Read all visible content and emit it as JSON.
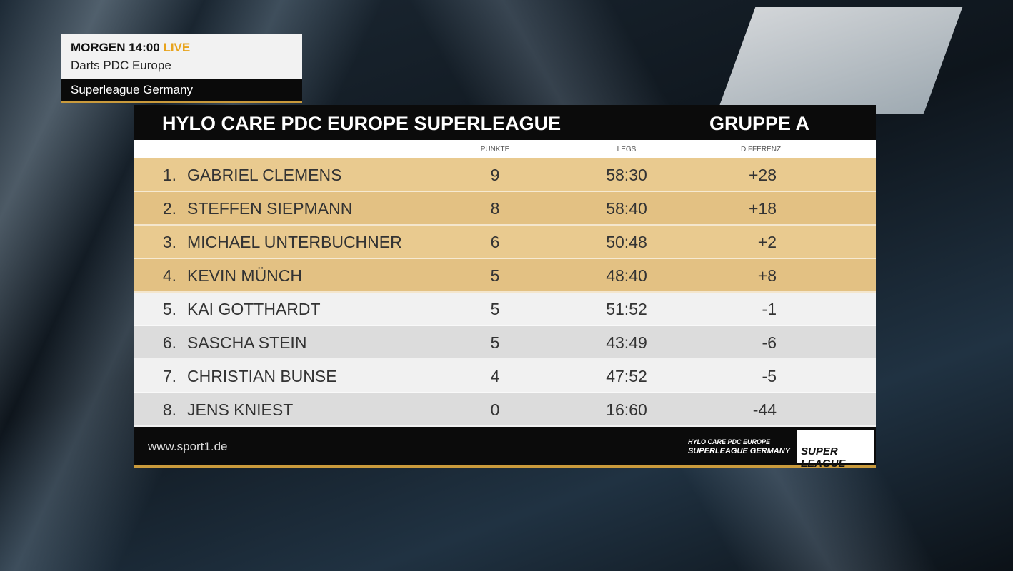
{
  "promo": {
    "time": "MORGEN 14:00",
    "live": "LIVE",
    "program": "Darts PDC Europe",
    "subtitle": "Superleague Germany"
  },
  "table": {
    "title": "HYLO CARE PDC EUROPE SUPERLEAGUE",
    "group": "GRUPPE A",
    "columns": [
      "PUNKTE",
      "LEGS",
      "DIFFERENZ"
    ],
    "rows": [
      [
        "1.",
        "GABRIEL CLEMENS",
        9,
        "58:30",
        "+28"
      ],
      [
        "2.",
        "STEFFEN SIEPMANN",
        8,
        "58:40",
        "+18"
      ],
      [
        "3.",
        "MICHAEL UNTERBUCHNER",
        6,
        "50:48",
        "+2"
      ],
      [
        "4.",
        "KEVIN MÜNCH",
        5,
        "48:40",
        "+8"
      ],
      [
        "5.",
        "KAI GOTTHARDT",
        5,
        "51:52",
        "-1"
      ],
      [
        "6.",
        "SASCHA STEIN",
        5,
        "43:49",
        "-6"
      ],
      [
        "7.",
        "CHRISTIAN BUNSE",
        4,
        "47:52",
        "-5"
      ],
      [
        "8.",
        "JENS KNIEST",
        0,
        "16:60",
        "-44"
      ]
    ]
  },
  "footer": {
    "website": "www.sport1.de",
    "league_line1": "HYLO CARE PDC EUROPE",
    "league_line2": "SUPERLEAGUE GERMANY",
    "logo": "SUPER LEAGUE"
  }
}
